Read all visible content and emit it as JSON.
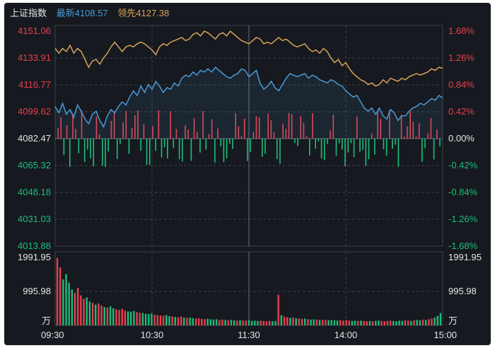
{
  "header": {
    "index_name": "上证指数",
    "latest_label": "最新",
    "latest_value": "4108.57",
    "leading_label": "领先",
    "leading_value": "4127.38"
  },
  "colors": {
    "background": "#16191f",
    "grid": "#3b4049",
    "up": "#e8404d",
    "down": "#1bbf7c",
    "flat": "#e6e6e6",
    "index_line": "#4a9ad8",
    "leading_line": "#d8a25a",
    "volume_up": "#e8404d",
    "volume_down": "#1bbf7c"
  },
  "chart_data": [
    {
      "type": "line",
      "title": "",
      "x_ticks": [
        "09:30",
        "10:30",
        "11:30",
        "14:00",
        "15:00"
      ],
      "y_left_ticks": [
        "4151.06",
        "4133.91",
        "4116.77",
        "4099.62",
        "4082.47",
        "4065.32",
        "4048.18",
        "4031.03",
        "4013.88"
      ],
      "y_right_ticks": [
        "1.68%",
        "1.26%",
        "0.84%",
        "0.42%",
        "0.00%",
        "-0.42%",
        "-0.84%",
        "-1.26%",
        "-1.68%"
      ],
      "y_range": [
        4013.88,
        4151.06
      ],
      "baseline": 4082.47,
      "series": [
        {
          "name": "最新",
          "values": [
            4103,
            4099,
            4105,
            4098,
            4101,
            4096,
            4104,
            4100,
            4095,
            4092,
            4098,
            4100,
            4094,
            4090,
            4097,
            4101,
            4099,
            4103,
            4106,
            4104,
            4109,
            4113,
            4110,
            4116,
            4112,
            4117,
            4114,
            4119,
            4116,
            4112,
            4115,
            4114,
            4118,
            4116,
            4121,
            4123,
            4122,
            4125,
            4123,
            4126,
            4125,
            4127,
            4125,
            4128,
            4126,
            4124,
            4122,
            4121,
            4123,
            4124,
            4127,
            4126,
            4122,
            4124,
            4126,
            4118,
            4114,
            4116,
            4119,
            4115,
            4113,
            4117,
            4121,
            4124,
            4123,
            4122,
            4123,
            4124,
            4121,
            4123,
            4122,
            4120,
            4119,
            4118,
            4120,
            4119,
            4117,
            4116,
            4113,
            4111,
            4109,
            4110,
            4106,
            4102,
            4100,
            4102,
            4098,
            4102,
            4097,
            4095,
            4101,
            4099,
            4094,
            4097,
            4097,
            4100,
            4102,
            4103,
            4105,
            4104,
            4106,
            4108,
            4107,
            4110,
            4108.57
          ]
        },
        {
          "name": "领先",
          "values": [
            4140,
            4137,
            4140,
            4138,
            4142,
            4137,
            4140,
            4138,
            4133,
            4128,
            4132,
            4133,
            4130,
            4134,
            4137,
            4141,
            4144,
            4141,
            4138,
            4141,
            4142,
            4141,
            4143,
            4144,
            4143,
            4141,
            4139,
            4136,
            4141,
            4143,
            4142,
            4144,
            4145,
            4146,
            4147,
            4145,
            4146,
            4149,
            4150,
            4148,
            4151,
            4150,
            4148,
            4146,
            4149,
            4150,
            4148,
            4151,
            4149,
            4147,
            4145,
            4144,
            4143,
            4145,
            4147,
            4146,
            4143,
            4144,
            4143,
            4145,
            4147,
            4145,
            4146,
            4144,
            4142,
            4141,
            4142,
            4143,
            4140,
            4138,
            4139,
            4137,
            4140,
            4138,
            4134,
            4131,
            4133,
            4129,
            4131,
            4127,
            4124,
            4122,
            4120,
            4119,
            4117,
            4118,
            4116,
            4117,
            4120,
            4118,
            4121,
            4120,
            4119,
            4121,
            4120,
            4122,
            4123,
            4124,
            4123,
            4124,
            4125,
            4127,
            4126,
            4128,
            4127.38
          ]
        }
      ],
      "grid": true
    },
    {
      "type": "bar",
      "title": "",
      "y_ticks": [
        "1991.95",
        "995.98"
      ],
      "unit": "万",
      "y_range": [
        0,
        1991.95
      ],
      "values": [
        1980,
        1700,
        1350,
        1500,
        1250,
        1050,
        950,
        1100,
        880,
        780,
        820,
        700,
        660,
        610,
        640,
        580,
        540,
        520,
        560,
        500,
        470,
        450,
        480,
        430,
        410,
        400,
        420,
        390,
        370,
        360,
        340,
        330,
        350,
        310,
        300,
        290,
        280,
        300,
        270,
        260,
        250,
        240,
        260,
        230,
        220,
        230,
        210,
        200,
        210,
        190,
        180,
        190,
        180,
        170,
        180,
        160,
        170,
        160,
        150,
        160,
        150,
        140,
        150,
        140,
        140,
        150,
        130,
        140,
        130,
        140,
        130,
        120,
        130,
        120,
        130,
        900,
        300,
        260,
        240,
        220,
        230,
        210,
        200,
        190,
        200,
        180,
        170,
        180,
        170,
        160,
        170,
        160,
        150,
        160,
        150,
        140,
        150,
        140,
        150,
        140,
        130,
        140,
        130,
        140,
        130,
        120,
        130,
        120,
        130,
        140,
        130,
        120,
        130,
        140,
        130,
        120,
        140,
        130,
        150,
        140,
        130,
        150,
        160,
        150,
        170,
        160,
        180,
        200,
        230,
        280,
        360
      ]
    }
  ]
}
